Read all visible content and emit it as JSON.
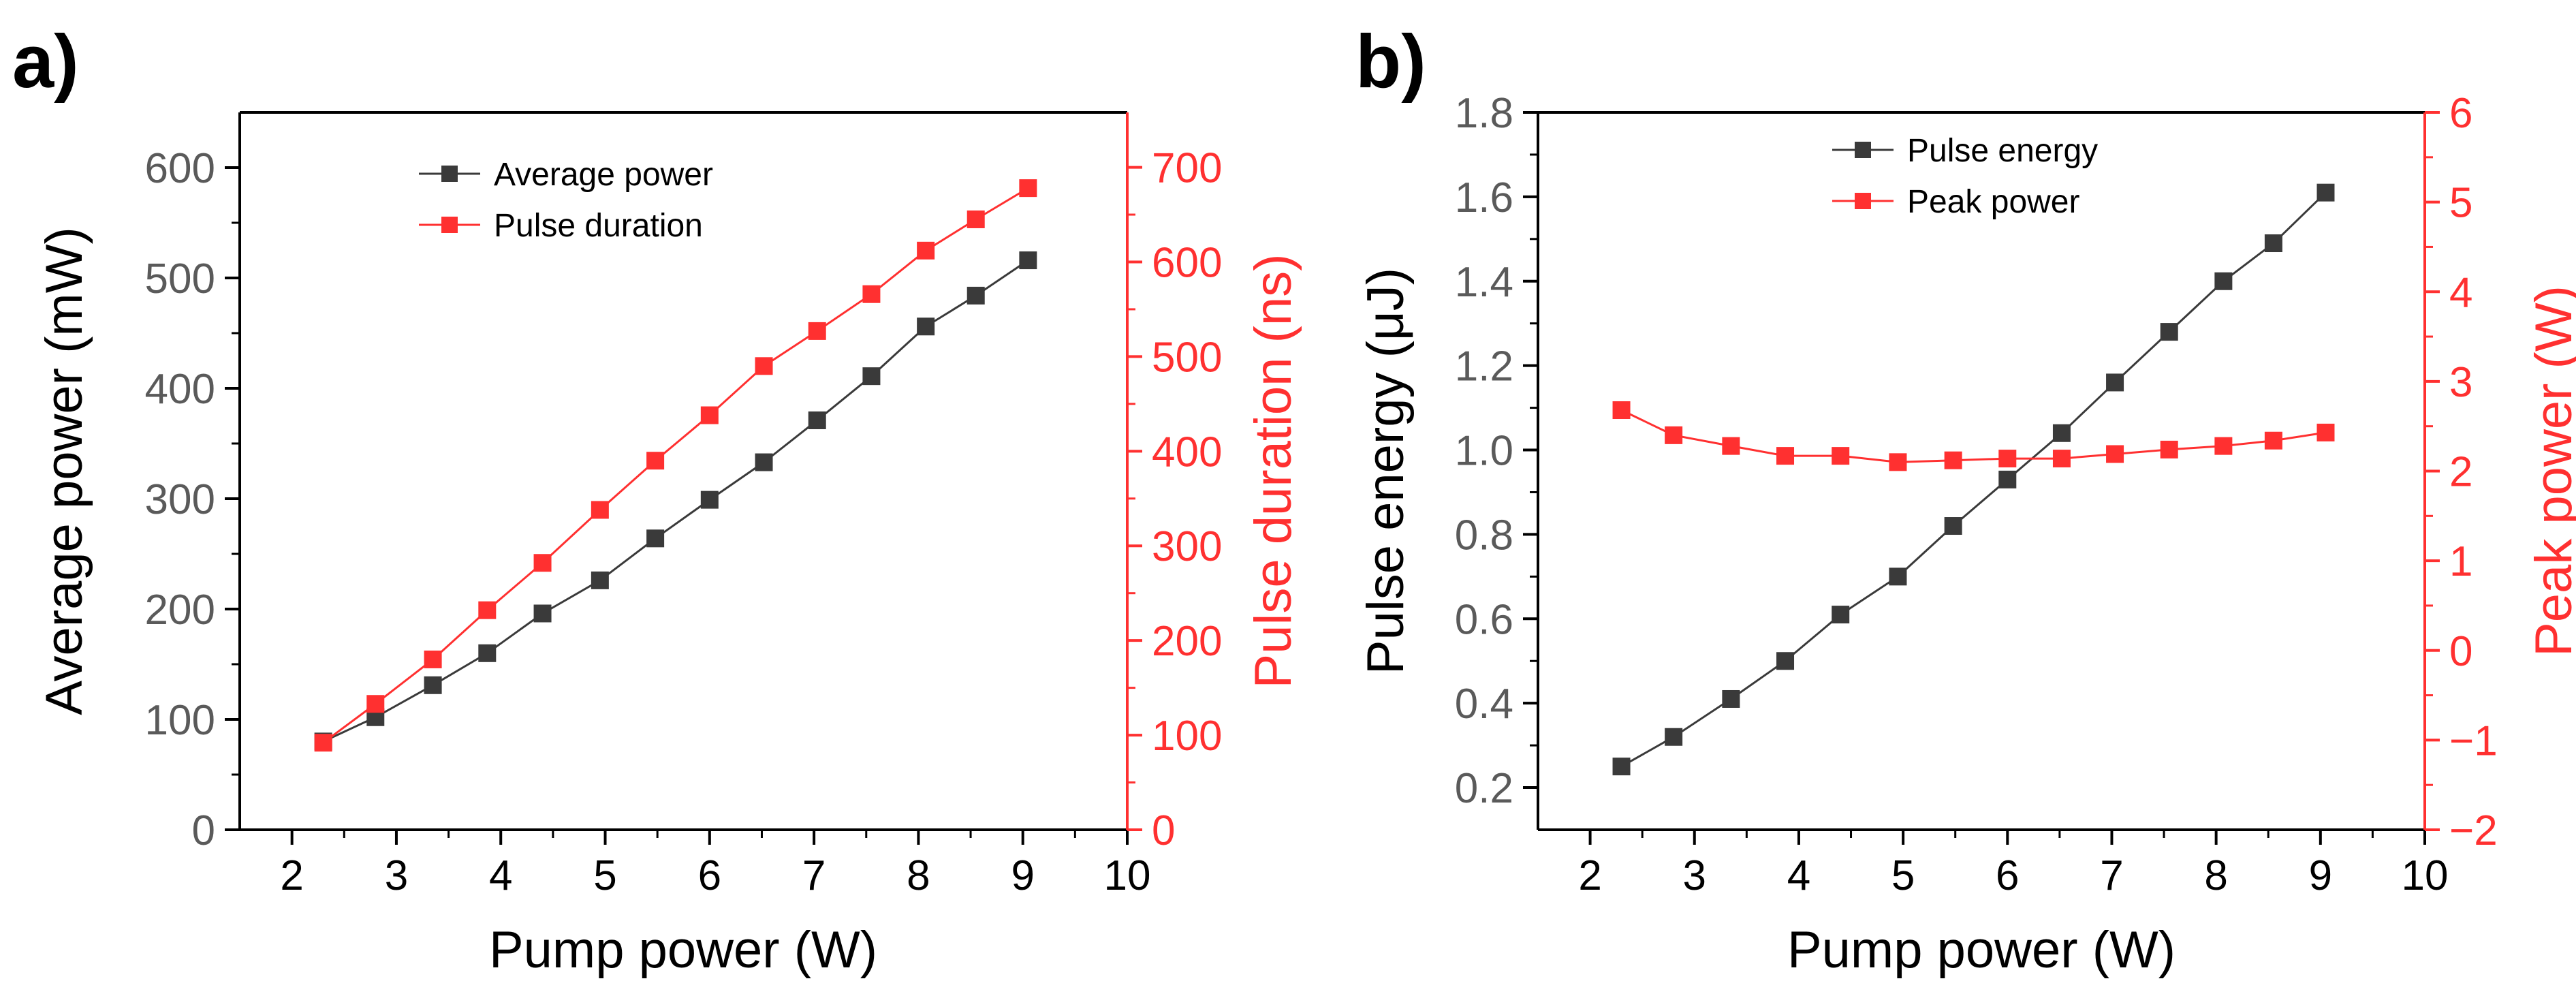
{
  "colors": {
    "series1": "#3a3a3a",
    "series2": "#ff3030",
    "left_axis_ticks": "#5a5a5a",
    "axis": "#000000"
  },
  "chart_data": [
    {
      "panel_label": "a)",
      "type": "line",
      "x": [
        2.3,
        2.8,
        3.35,
        3.87,
        4.4,
        4.95,
        5.48,
        6.0,
        6.52,
        7.03,
        7.55,
        8.07,
        8.55,
        9.05
      ],
      "xlabel": "Pump power (W)",
      "xlim": [
        1.5,
        10
      ],
      "xticks": [
        2,
        3,
        4,
        5,
        6,
        7,
        8,
        9,
        10
      ],
      "left": {
        "label": "Average power (mW)",
        "lim": [
          0,
          650
        ],
        "ticks": [
          0,
          100,
          200,
          300,
          400,
          500,
          600
        ]
      },
      "right": {
        "label": "Pulse duration (ns)",
        "lim": [
          0,
          758
        ],
        "ticks": [
          0,
          100,
          200,
          300,
          400,
          500,
          600,
          700
        ]
      },
      "legend_position": "top-center",
      "series": [
        {
          "name": "Average power",
          "axis": "left",
          "color": "#3a3a3a",
          "values": [
            80,
            102,
            131,
            160,
            196,
            226,
            264,
            299,
            333,
            371,
            411,
            456,
            484,
            516
          ]
        },
        {
          "name": "Pulse duration",
          "axis": "right",
          "color": "#ff3030",
          "values": [
            92,
            133,
            180,
            232,
            282,
            338,
            390,
            438,
            490,
            527,
            566,
            612,
            645,
            678
          ]
        }
      ]
    },
    {
      "panel_label": "b)",
      "type": "line",
      "x": [
        2.3,
        2.8,
        3.35,
        3.87,
        4.4,
        4.95,
        5.48,
        6.0,
        6.52,
        7.03,
        7.55,
        8.07,
        8.55,
        9.05
      ],
      "xlabel": "Pump power (W)",
      "xlim": [
        1.5,
        10
      ],
      "xticks": [
        2,
        3,
        4,
        5,
        6,
        7,
        8,
        9,
        10
      ],
      "left": {
        "label": "Pulse energy (μJ)",
        "lim": [
          0.1,
          1.8
        ],
        "ticks": [
          "0.2",
          "0.4",
          "0.6",
          "0.8",
          "1.0",
          "1.2",
          "1.4",
          "1.6",
          "1.8"
        ]
      },
      "right": {
        "label": "Peak power (W)",
        "lim": [
          -2,
          6
        ],
        "ticks": [
          -2,
          -1,
          0,
          1,
          2,
          3,
          4,
          5,
          6
        ]
      },
      "legend_position": "top-center",
      "series": [
        {
          "name": "Pulse energy",
          "axis": "left",
          "color": "#3a3a3a",
          "values": [
            0.25,
            0.32,
            0.41,
            0.5,
            0.61,
            0.7,
            0.82,
            0.93,
            1.04,
            1.16,
            1.28,
            1.4,
            1.49,
            1.61
          ]
        },
        {
          "name": "Peak power",
          "axis": "right",
          "color": "#ff3030",
          "values": [
            2.68,
            2.4,
            2.28,
            2.17,
            2.17,
            2.1,
            2.12,
            2.14,
            2.14,
            2.19,
            2.24,
            2.28,
            2.34,
            2.43
          ]
        }
      ]
    }
  ]
}
